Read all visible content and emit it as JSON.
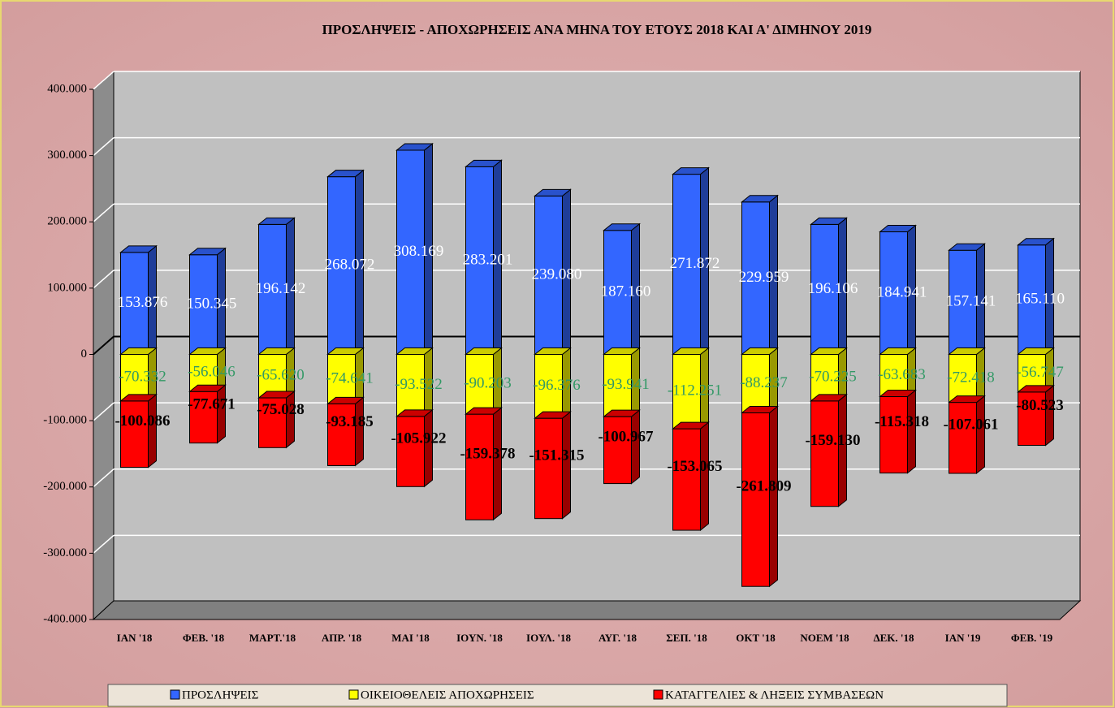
{
  "chart_data": {
    "type": "bar",
    "title": "ΠΡΟΣΛΗΨΕΙΣ - ΑΠΟΧΩΡΗΣΕΙΣ ΑΝΑ ΜΗΝΑ ΤΟΥ ΕΤΟΥΣ 2018 ΚΑΙ Α' ΔΙΜΗΝΟΥ 2019",
    "categories": [
      "ΙΑΝ '18",
      "ΦΕΒ. '18",
      "ΜΑΡΤ.'18",
      "ΑΠΡ. '18",
      "ΜΑΙ '18",
      "ΙΟΥΝ. '18",
      "ΙΟΥΛ. '18",
      "ΑΥΓ. '18",
      "ΣΕΠ. '18",
      "ΟΚΤ '18",
      "ΝΟΕΜ '18",
      "ΔΕΚ. '18",
      "ΙΑΝ '19",
      "ΦΕΒ. '19"
    ],
    "series": [
      {
        "name": "ΠΡΟΣΛΗΨΕΙΣ",
        "color": "#3366ff",
        "label_color": "#ffffff",
        "values": [
          153876,
          150345,
          196142,
          268072,
          308169,
          283201,
          239080,
          187160,
          271872,
          229959,
          196106,
          184941,
          157141,
          165110
        ],
        "value_labels": [
          "153.876",
          "150.345",
          "196.142",
          "268.072",
          "308.169",
          "283.201",
          "239.080",
          "187.160",
          "271.872",
          "229.959",
          "196.106",
          "184.941",
          "157.141",
          "165.110"
        ]
      },
      {
        "name": "ΟΙΚΕΙΟΘΕΛΕΙΣ ΑΠΟΧΩΡΗΣΕΙΣ",
        "color": "#ffff00",
        "label_color": "#339966",
        "values": [
          -70332,
          -56046,
          -65620,
          -74641,
          -93522,
          -90203,
          -96376,
          -93941,
          -112251,
          -88237,
          -70225,
          -63683,
          -72418,
          -56747
        ],
        "value_labels": [
          "-70.332",
          "-56.046",
          "-65.620",
          "-74.641",
          "-93.522",
          "-90.203",
          "-96.376",
          "-93.941",
          "-112.251",
          "-88.237",
          "-70.225",
          "-63.683",
          "-72.418",
          "-56.747"
        ]
      },
      {
        "name": "ΚΑΤΑΓΓΕΛΙΕΣ & ΛΗΞΕΙΣ ΣΥΜΒΑΣΕΩΝ",
        "color": "#ff0000",
        "label_color": "#000000",
        "values": [
          -100086,
          -77671,
          -75028,
          -93185,
          -105922,
          -159378,
          -151315,
          -100967,
          -153065,
          -261809,
          -159130,
          -115318,
          -107061,
          -80523
        ],
        "value_labels": [
          "-100.086",
          "-77.671",
          "-75.028",
          "-93.185",
          "-105.922",
          "-159.378",
          "-151.315",
          "-100.967",
          "-153.065",
          "-261.809",
          "-159.130",
          "-115.318",
          "-107.061",
          "-80.523"
        ]
      }
    ],
    "ylim": [
      -400000,
      400000
    ],
    "yticks": [
      {
        "value": 400000,
        "label": "400.000"
      },
      {
        "value": 300000,
        "label": "300.000"
      },
      {
        "value": 200000,
        "label": "200.000"
      },
      {
        "value": 100000,
        "label": "100.000"
      },
      0,
      {
        "value": -100000,
        "label": "-100.000"
      },
      {
        "value": -200000,
        "label": "-200.000"
      },
      {
        "value": -300000,
        "label": "-300.000"
      },
      {
        "value": -400000,
        "label": "-400.000"
      }
    ],
    "grid": true,
    "legend": "bottom"
  }
}
